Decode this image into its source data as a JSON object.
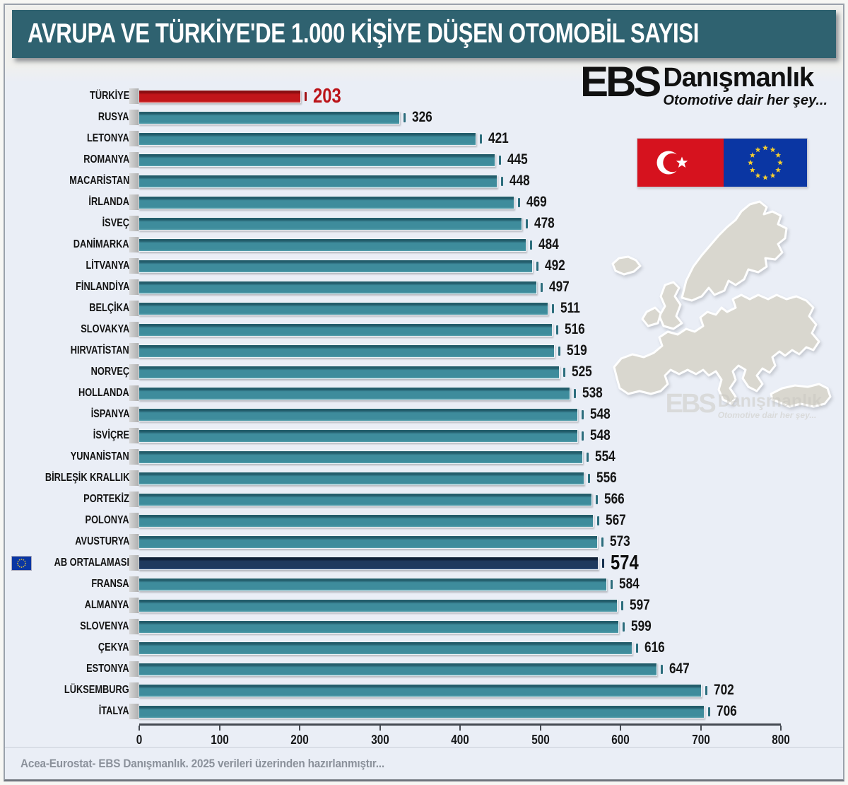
{
  "title": "AVRUPA VE TÜRKİYE'DE 1.000 KİŞİYE DÜŞEN OTOMOBİL SAYISI",
  "brand": {
    "abbr": "EBS",
    "name": "Danışmanlık",
    "tagline": "Otomotive dair her şey..."
  },
  "watermark": {
    "abbr": "EBS",
    "name": "Danışmanlık",
    "tagline": "Otomotive dair her şey..."
  },
  "footer": {
    "source_note": "Acea-Eurostat- EBS Danışmanlık. 2025 verileri üzerinden hazırlanmıştır..."
  },
  "colors": {
    "banner_bg": "#2f6270",
    "page_bg": "#eaeef6",
    "bar_default": "#3e8c9c",
    "bar_turkey": "#c1161a",
    "bar_eu_average": "#1e3a5e",
    "value_turkey_text": "#bb1419",
    "value_text": "#141414",
    "axis_color": "#454a52",
    "footer_text": "#8b919b",
    "turkish_flag_red": "#d6121e",
    "eu_flag_blue": "#0a36a3",
    "eu_star_gold": "#f5cf2f",
    "map_fill": "#d9d7cf"
  },
  "chart_data": {
    "type": "bar",
    "orientation": "horizontal",
    "title": "AVRUPA VE TÜRKİYE'DE 1.000 KİŞİYE DÜŞEN OTOMOBİL SAYISI",
    "xlabel": "",
    "ylabel": "",
    "xlim": [
      0,
      800
    ],
    "x_ticks": [
      0,
      100,
      200,
      300,
      400,
      500,
      600,
      700,
      800
    ],
    "grid": false,
    "legend": null,
    "categories": [
      "TÜRKİYE",
      "RUSYA",
      "LETONYA",
      "ROMANYA",
      "MACARİSTAN",
      "İRLANDA",
      "İSVEÇ",
      "DANİMARKA",
      "LİTVANYA",
      "FİNLANDİYA",
      "BELÇİKA",
      "SLOVAKYA",
      "HIRVATİSTAN",
      "NORVEÇ",
      "HOLLANDA",
      "İSPANYA",
      "İSVİÇRE",
      "YUNANİSTAN",
      "BİRLEŞİK KRALLIK",
      "PORTEKİZ",
      "POLONYA",
      "AVUSTURYA",
      "AB ORTALAMASI",
      "FRANSA",
      "ALMANYA",
      "SLOVENYA",
      "ÇEKYA",
      "ESTONYA",
      "LÜKSEMBURG",
      "İTALYA"
    ],
    "values": [
      203,
      326,
      421,
      445,
      448,
      469,
      478,
      484,
      492,
      497,
      511,
      516,
      519,
      525,
      538,
      548,
      548,
      554,
      556,
      566,
      567,
      573,
      574,
      584,
      597,
      599,
      616,
      647,
      702,
      706
    ],
    "row_types": [
      "turkey",
      "default",
      "default",
      "default",
      "default",
      "default",
      "default",
      "default",
      "default",
      "default",
      "default",
      "default",
      "default",
      "default",
      "default",
      "default",
      "default",
      "default",
      "default",
      "default",
      "default",
      "default",
      "eu",
      "default",
      "default",
      "default",
      "default",
      "default",
      "default",
      "default"
    ]
  }
}
